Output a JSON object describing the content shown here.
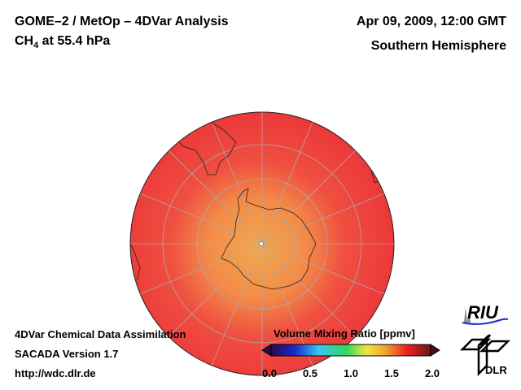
{
  "header": {
    "title_line1": "GOME–2 / MetOp – 4DVar Analysis",
    "species": "CH",
    "species_sub": "4",
    "level": " at 55.4 hPa",
    "date": "Apr 09, 2009, 12:00 GMT",
    "hemisphere": "Southern Hemisphere"
  },
  "footer": {
    "line1": "4DVar Chemical Data Assimilation",
    "line2": "SACADA Version 1.7",
    "line3": "http://wdc.dlr.de"
  },
  "colorbar": {
    "title": "Volume Mixing Ratio [ppmv]",
    "ticks": [
      "0.0",
      "0.5",
      "1.0",
      "1.5",
      "2.0"
    ],
    "range": [
      0.0,
      2.0
    ],
    "colors": [
      "#2a0a4a",
      "#1a2ad0",
      "#3ac8f0",
      "#30d860",
      "#f0e840",
      "#f0a030",
      "#f02020",
      "#6a1818"
    ]
  },
  "logos": {
    "riu": "RIU",
    "dlr": "DLR"
  },
  "map": {
    "background_color": "#ef3a3a",
    "center_color": "#f5a040"
  }
}
